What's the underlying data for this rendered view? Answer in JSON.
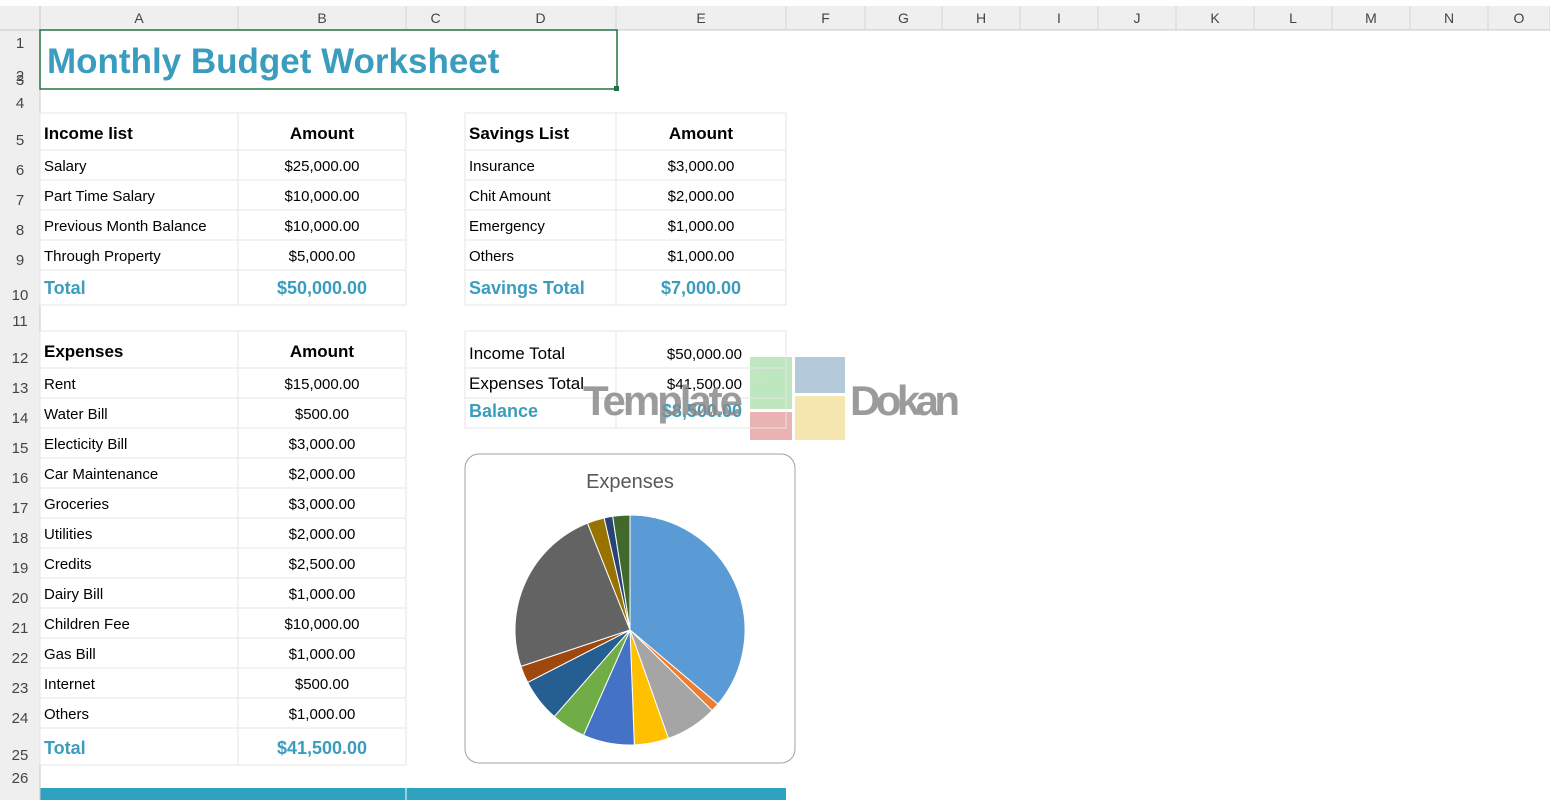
{
  "sheet": {
    "columns": [
      "A",
      "B",
      "C",
      "D",
      "E",
      "F",
      "G",
      "H",
      "I",
      "J",
      "K",
      "L",
      "M",
      "N",
      "O"
    ],
    "rows": [
      1,
      2,
      3,
      4,
      5,
      6,
      7,
      8,
      9,
      10,
      11,
      12,
      13,
      14,
      15,
      16,
      17,
      18,
      19,
      20,
      21,
      22,
      23,
      24,
      25,
      26
    ]
  },
  "title": "Monthly Budget Worksheet",
  "income": {
    "headers": [
      "Income list",
      "Amount"
    ],
    "rows": [
      [
        "Salary",
        "$25,000.00"
      ],
      [
        "Part Time Salary",
        "$10,000.00"
      ],
      [
        "Previous Month Balance",
        "$10,000.00"
      ],
      [
        "Through Property",
        "$5,000.00"
      ]
    ],
    "total": [
      "Total",
      "$50,000.00"
    ]
  },
  "savings": {
    "headers": [
      "Savings List",
      "Amount"
    ],
    "rows": [
      [
        "Insurance",
        "$3,000.00"
      ],
      [
        "Chit Amount",
        "$2,000.00"
      ],
      [
        "Emergency",
        "$1,000.00"
      ],
      [
        "Others",
        "$1,000.00"
      ]
    ],
    "total": [
      "Savings Total",
      "$7,000.00"
    ]
  },
  "summary": {
    "rows": [
      [
        "Income Total",
        "$50,000.00"
      ],
      [
        "Expenses Total",
        "$41,500.00"
      ]
    ],
    "total": [
      "Balance",
      "$8,500.00"
    ]
  },
  "expenses": {
    "headers": [
      "Expenses",
      "Amount"
    ],
    "rows": [
      [
        "Rent",
        "$15,000.00"
      ],
      [
        "Water Bill",
        "$500.00"
      ],
      [
        "Electicity Bill",
        "$3,000.00"
      ],
      [
        "Car Maintenance",
        "$2,000.00"
      ],
      [
        "Groceries",
        "$3,000.00"
      ],
      [
        "Utilities",
        "$2,000.00"
      ],
      [
        "Credits",
        "$2,500.00"
      ],
      [
        "Dairy Bill",
        "$1,000.00"
      ],
      [
        "Children Fee",
        "$10,000.00"
      ],
      [
        "Gas Bill",
        "$1,000.00"
      ],
      [
        "Internet",
        "$500.00"
      ],
      [
        "Others",
        "$1,000.00"
      ]
    ],
    "total": [
      "Total",
      "$41,500.00"
    ]
  },
  "chart_data": {
    "type": "pie",
    "title": "Expenses",
    "values": [
      15000,
      500,
      3000,
      2000,
      3000,
      2000,
      2500,
      1000,
      10000,
      1000,
      500,
      1000
    ],
    "colors": [
      "#5b9bd5",
      "#ed7d31",
      "#a5a5a5",
      "#ffc000",
      "#4472c4",
      "#70ad47",
      "#255e91",
      "#9e480e",
      "#636363",
      "#997300",
      "#264478",
      "#43682b"
    ]
  },
  "watermark": {
    "left": "Template",
    "right": "Dokan"
  }
}
